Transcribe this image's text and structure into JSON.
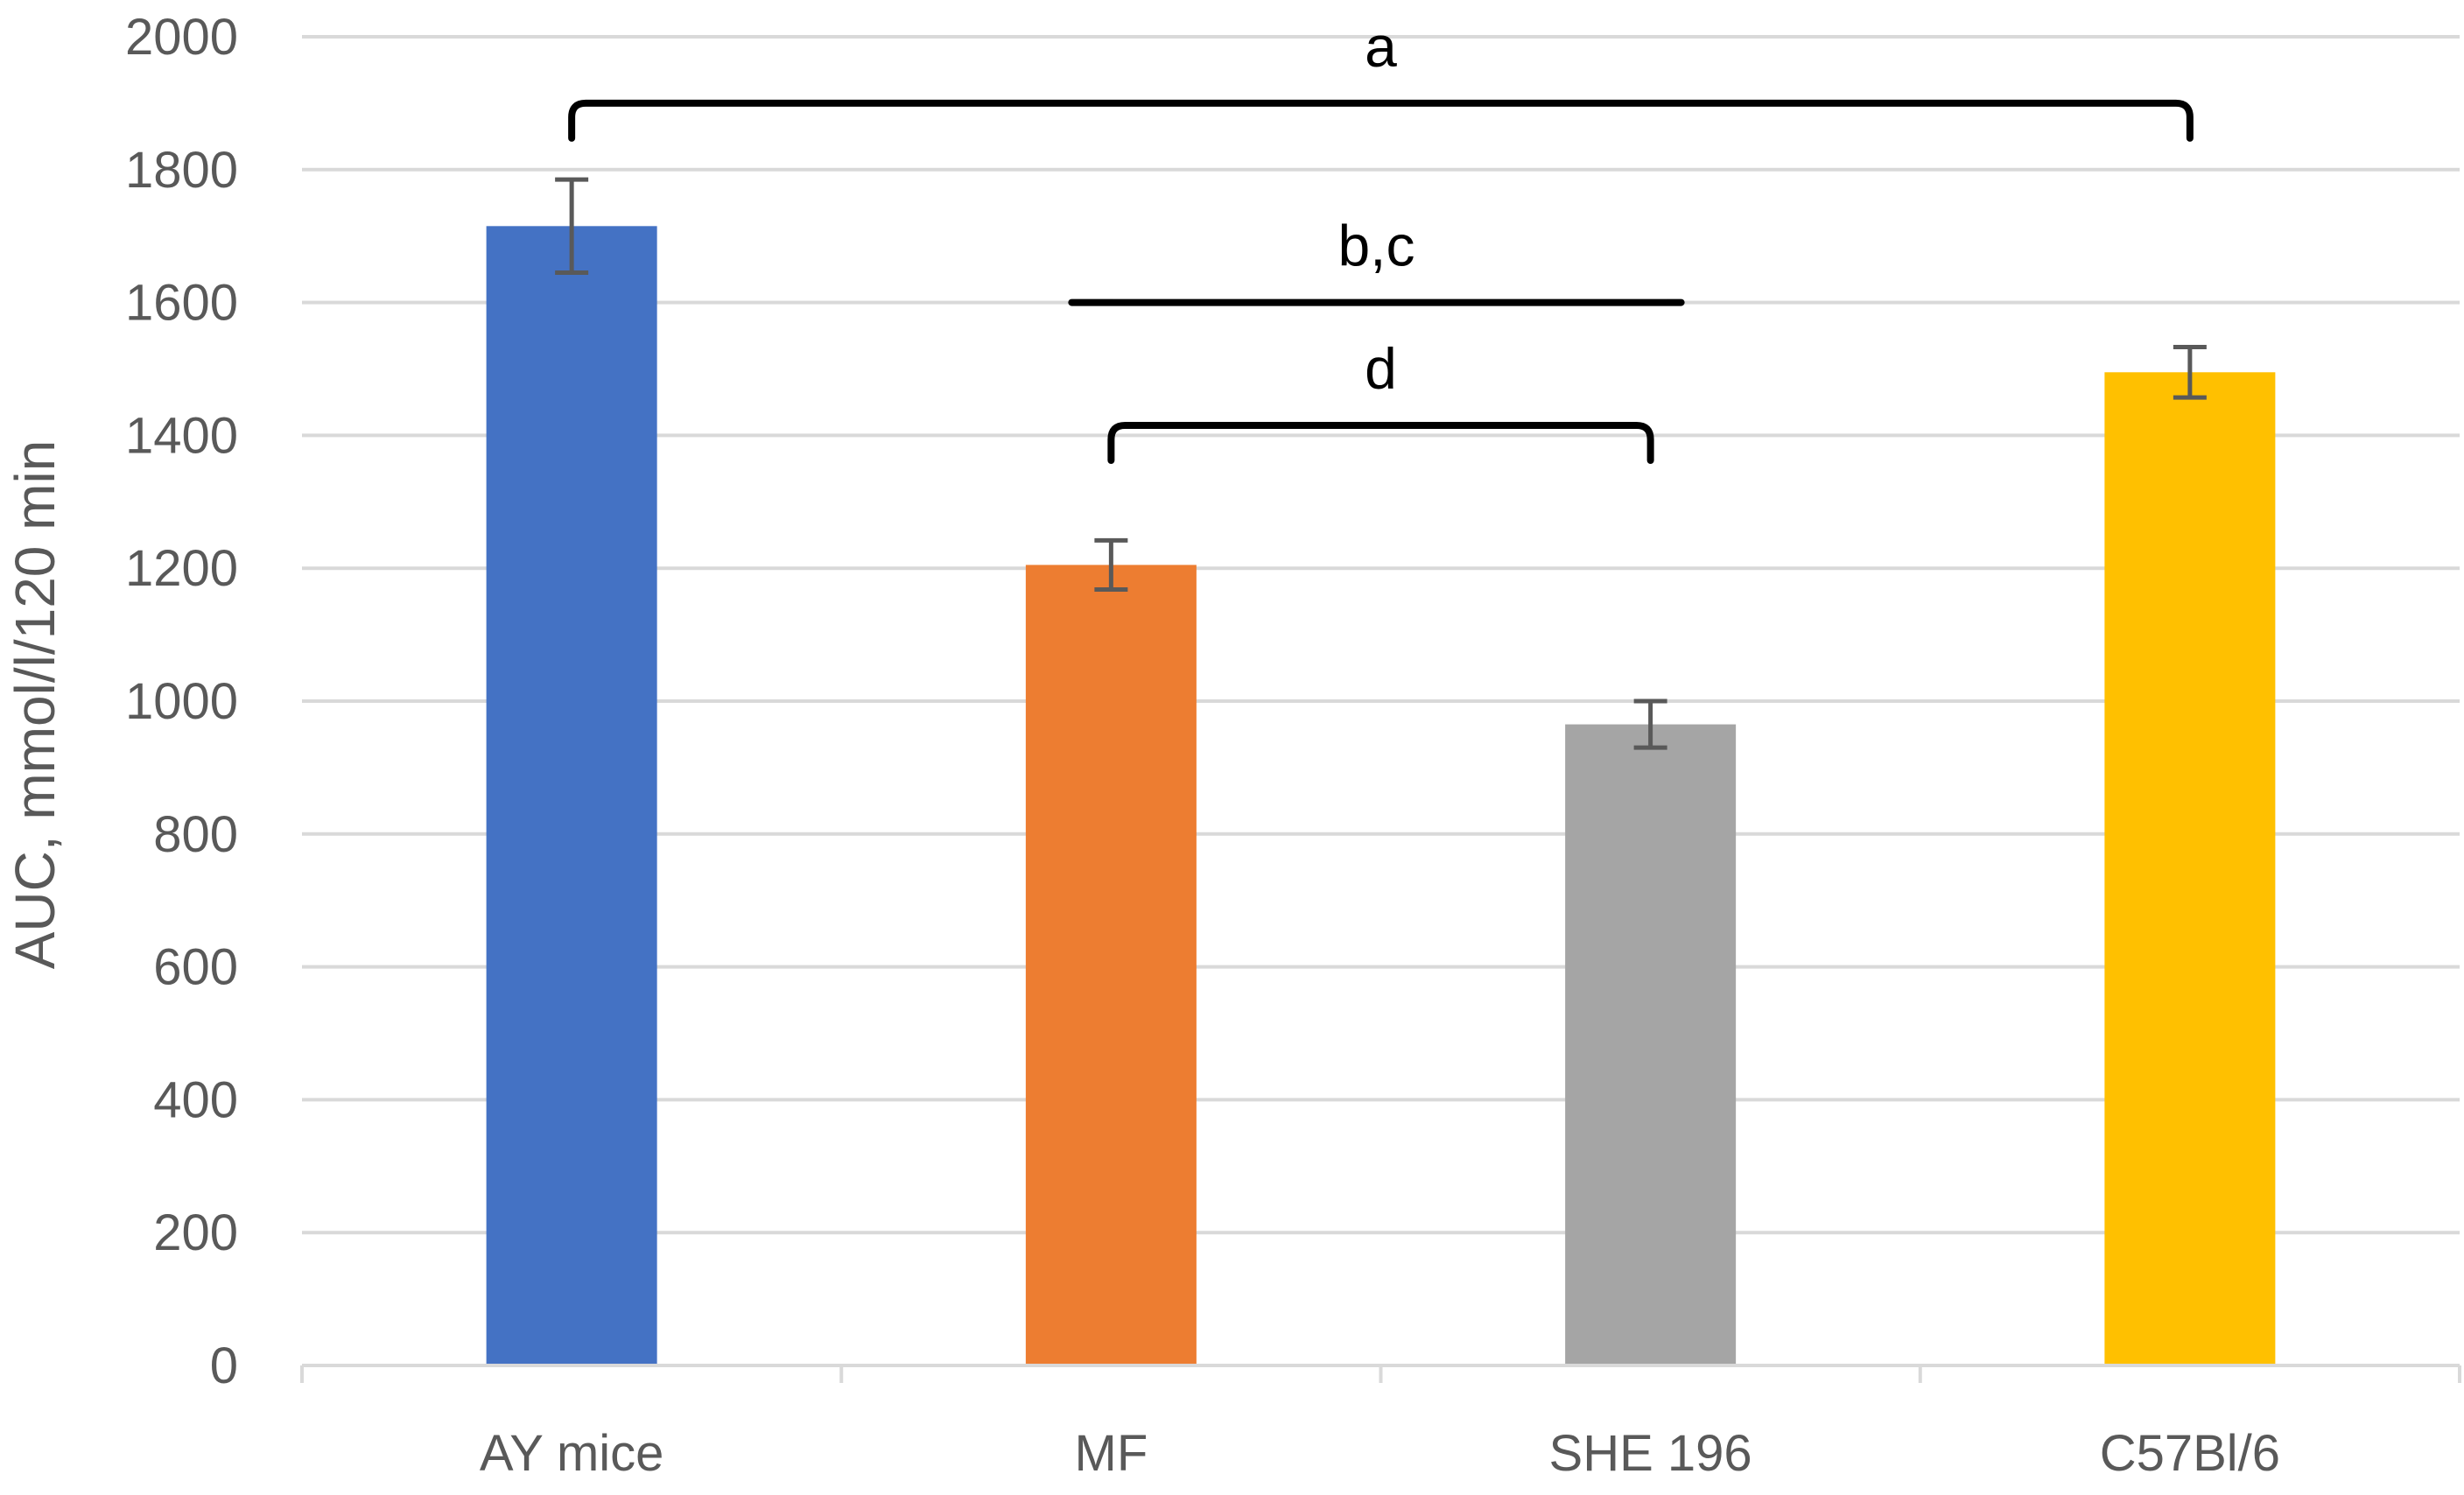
{
  "chart_data": {
    "type": "bar",
    "title": "",
    "xlabel": "",
    "ylabel": "AUC, mmol/l/120 min",
    "ylim": [
      0,
      2000
    ],
    "ytick_step": 200,
    "yticks": [
      "0",
      "200",
      "400",
      "600",
      "800",
      "1000",
      "1200",
      "1400",
      "1600",
      "1800",
      "2000"
    ],
    "grid": true,
    "legend": "none",
    "categories": [
      "AY mice",
      "MF",
      "SHE 196",
      "C57Bl/6"
    ],
    "values": [
      1715,
      1205,
      965,
      1495
    ],
    "errors": [
      70,
      37,
      35,
      38
    ],
    "colors": [
      "#4472C4",
      "#ED7D31",
      "#A5A5A5",
      "#FFC000"
    ],
    "gridline_color": "#D9D9D9",
    "error_bar_color": "#595959",
    "annotations": [
      {
        "label": "a",
        "from": "AY mice",
        "to": "C57Bl/6",
        "y": 1900,
        "style": "bracket"
      },
      {
        "label": "b,c",
        "from": "MF",
        "to": "SHE 196",
        "y": 1600,
        "style": "line"
      },
      {
        "label": "d",
        "from": "MF",
        "to": "SHE 196",
        "y": 1415,
        "style": "bracket"
      }
    ]
  }
}
